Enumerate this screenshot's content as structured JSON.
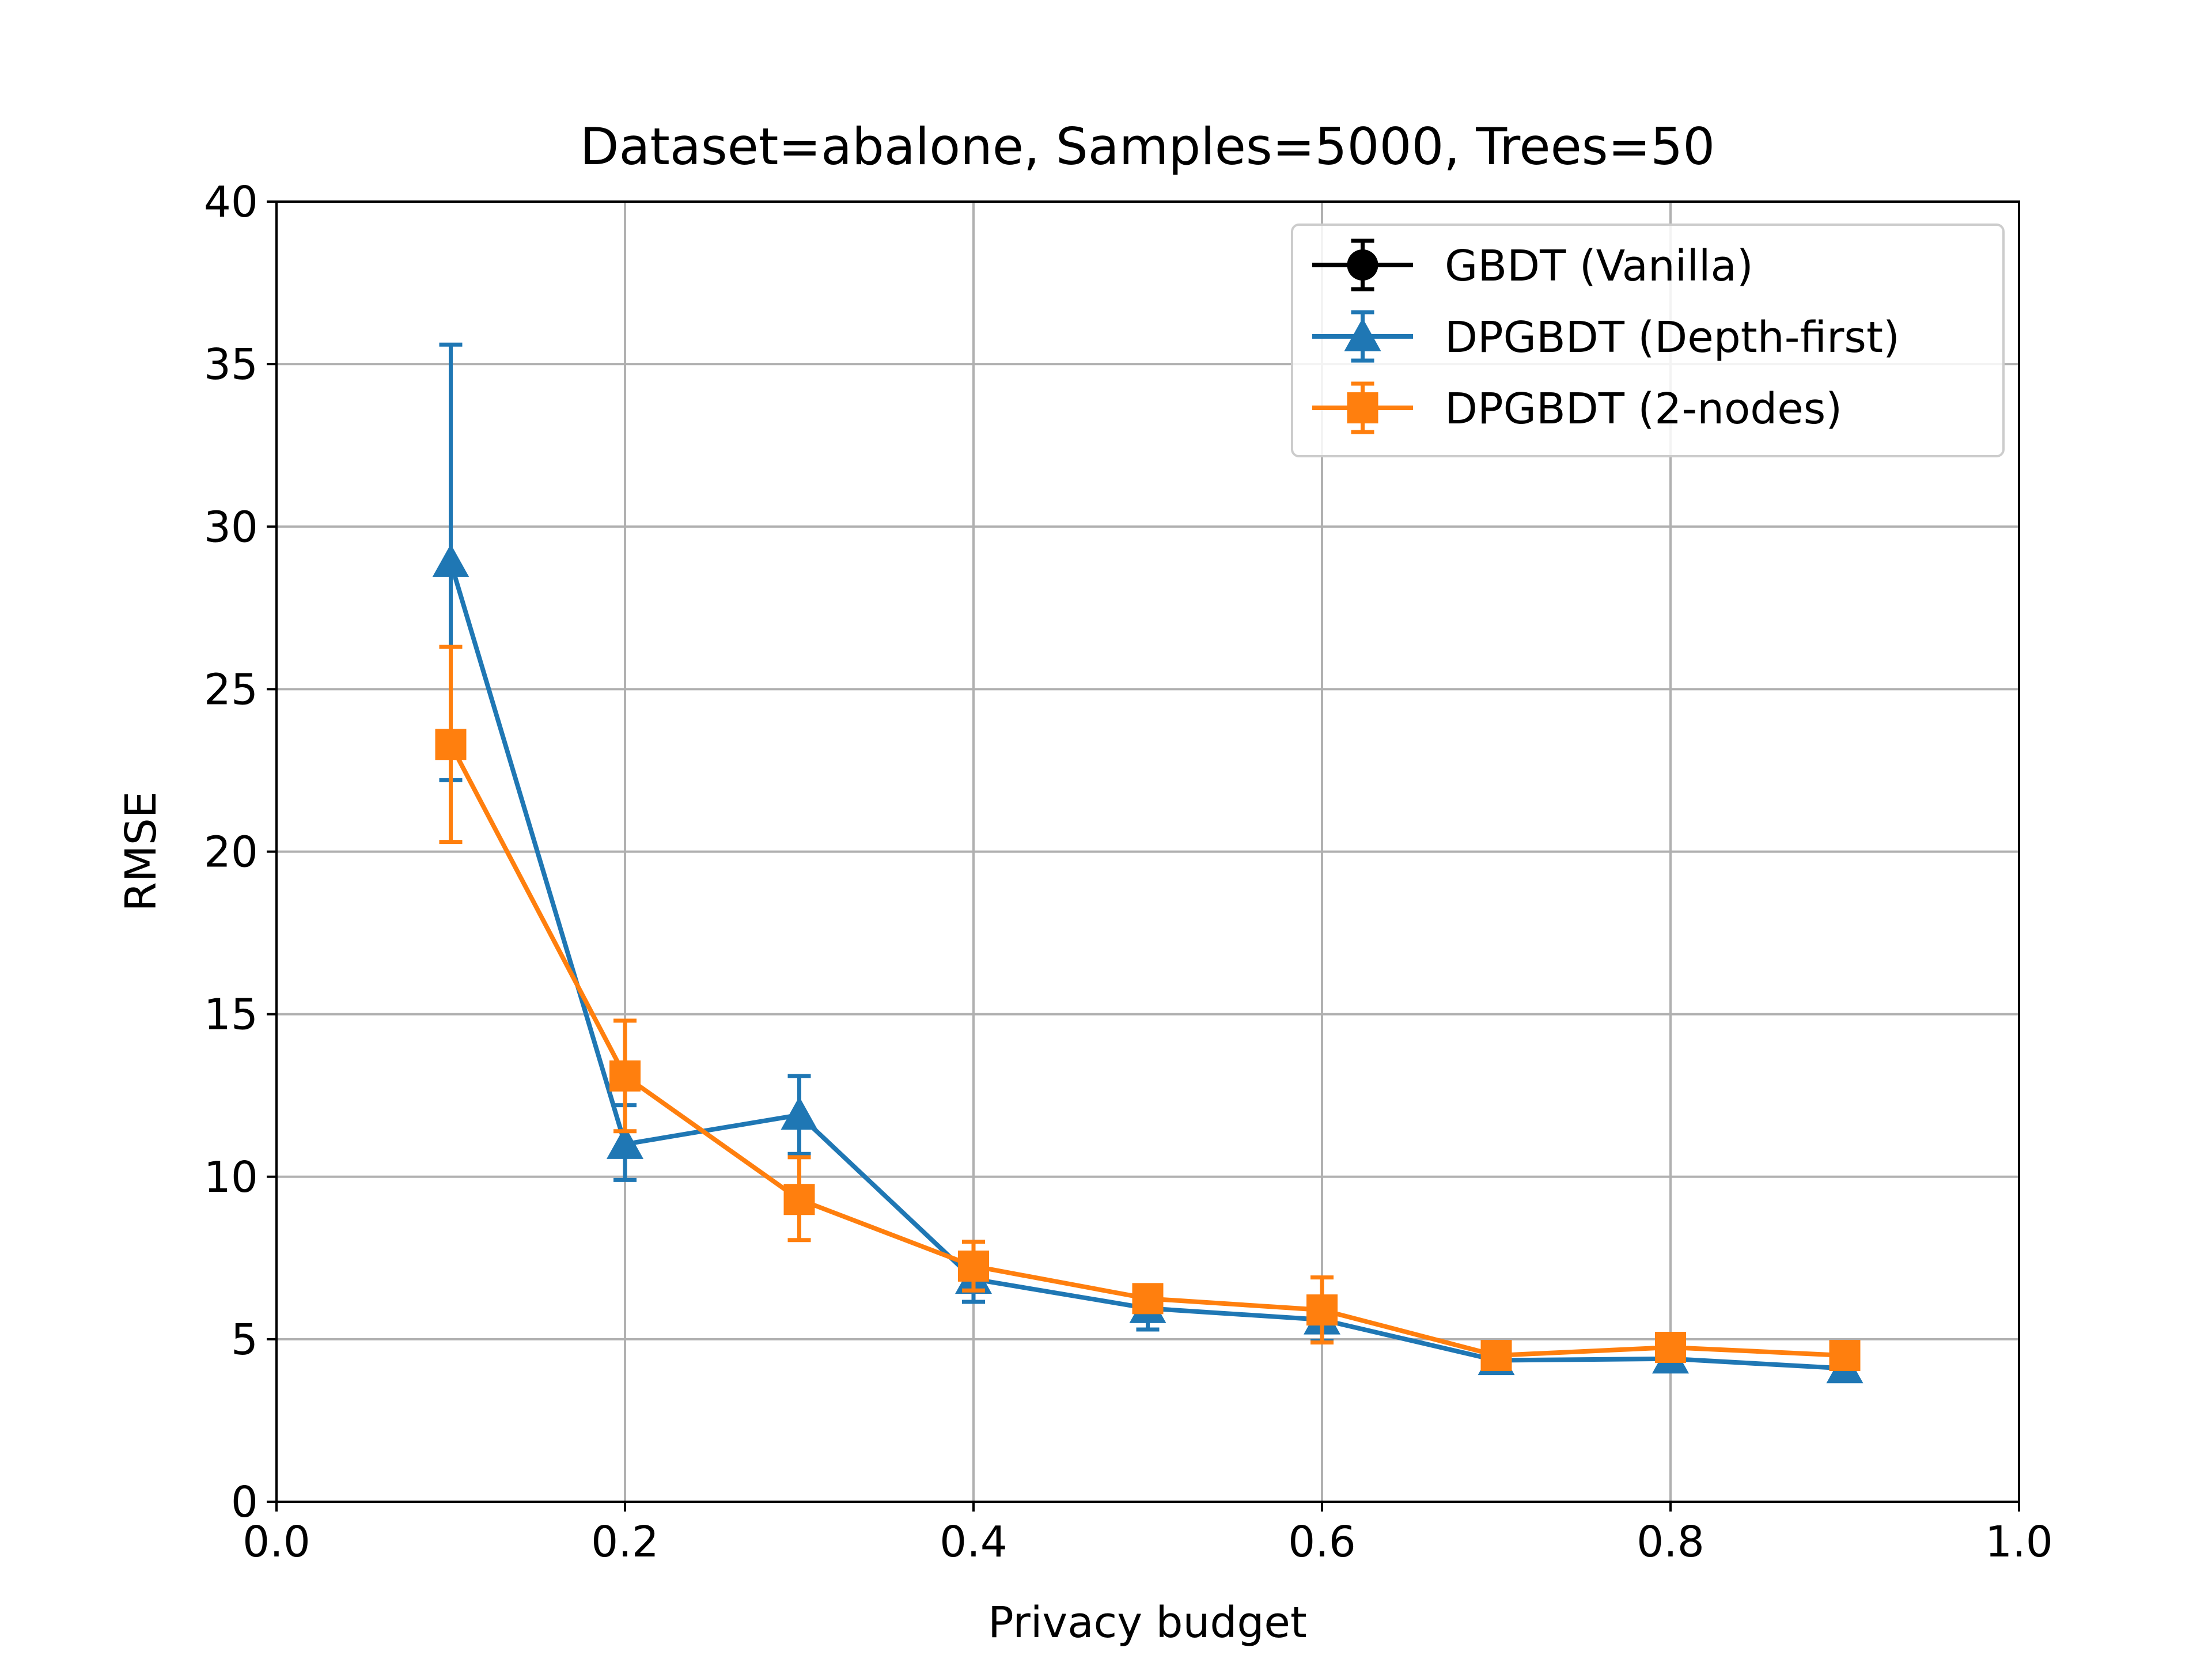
{
  "chart_data": {
    "type": "line",
    "title": "Dataset=abalone, Samples=5000, Trees=50",
    "xlabel": "Privacy budget",
    "ylabel": "RMSE",
    "xlim": [
      0.0,
      1.0
    ],
    "ylim": [
      0,
      40
    ],
    "xticks": [
      "0.0",
      "0.2",
      "0.4",
      "0.6",
      "0.8",
      "1.0"
    ],
    "yticks": [
      "0",
      "5",
      "10",
      "15",
      "20",
      "25",
      "30",
      "35",
      "40"
    ],
    "grid": true,
    "legend_position": "top-right",
    "series": [
      {
        "name": "GBDT (Vanilla)",
        "color": "#000000",
        "marker": "circle",
        "x": [],
        "y": [],
        "err_low": [],
        "err_high": []
      },
      {
        "name": "DPGBDT (Depth-first)",
        "color": "#1f77b4",
        "marker": "triangle",
        "x": [
          0.1,
          0.2,
          0.3,
          0.4,
          0.5,
          0.6,
          0.7,
          0.8,
          0.9
        ],
        "y": [
          28.9,
          11.0,
          11.9,
          6.85,
          5.95,
          5.6,
          4.35,
          4.4,
          4.1
        ],
        "err_low": [
          22.2,
          9.9,
          10.7,
          6.15,
          5.3,
          4.95,
          4.2,
          4.25,
          3.95
        ],
        "err_high": [
          35.6,
          12.2,
          13.1,
          7.55,
          6.6,
          6.25,
          4.5,
          4.55,
          4.25
        ]
      },
      {
        "name": "DPGBDT (2-nodes)",
        "color": "#ff7f0e",
        "marker": "square",
        "x": [
          0.1,
          0.2,
          0.3,
          0.4,
          0.5,
          0.6,
          0.7,
          0.8,
          0.9
        ],
        "y": [
          23.3,
          13.1,
          9.3,
          7.25,
          6.25,
          5.9,
          4.5,
          4.75,
          4.5
        ],
        "err_low": [
          20.3,
          11.4,
          8.05,
          6.5,
          5.9,
          4.9,
          4.35,
          4.6,
          4.35
        ],
        "err_high": [
          26.3,
          14.8,
          10.6,
          8.0,
          6.6,
          6.9,
          4.65,
          4.9,
          4.65
        ]
      }
    ]
  }
}
